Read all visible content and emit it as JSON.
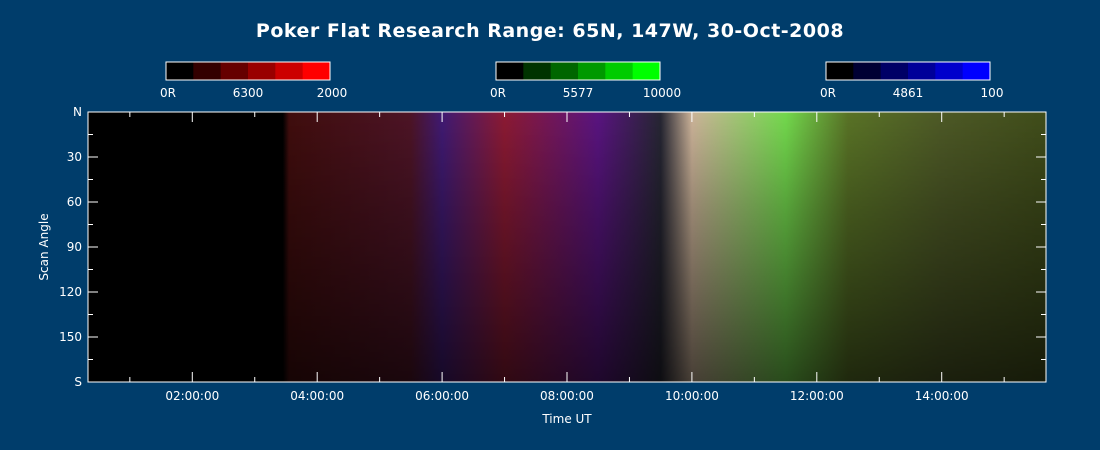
{
  "chart_data": {
    "type": "heatmap",
    "title": "Poker Flat Research Range: 65N, 147W, 30-Oct-2008",
    "xlabel": "Time UT",
    "ylabel": "Scan Angle",
    "x_tick_labels": [
      "02:00:00",
      "04:00:00",
      "06:00:00",
      "08:00:00",
      "10:00:00",
      "12:00:00",
      "14:00:00"
    ],
    "x_range_hours": [
      0.33,
      15.67
    ],
    "y_tick_labels": [
      "N",
      "30",
      "60",
      "90",
      "120",
      "150",
      "S"
    ],
    "y_range_degrees": [
      0,
      180
    ],
    "colorbars": [
      {
        "min_label": "0R",
        "center_label": "6300",
        "max_label": "2000",
        "color": "#ff0000",
        "swatches": [
          "#000000",
          "#330000",
          "#660000",
          "#990000",
          "#cc0000",
          "#ff0000"
        ]
      },
      {
        "min_label": "0R",
        "center_label": "5577",
        "max_label": "10000",
        "color": "#00ff00",
        "swatches": [
          "#000000",
          "#003300",
          "#006600",
          "#009900",
          "#00cc00",
          "#00ff00"
        ]
      },
      {
        "min_label": "0R",
        "center_label": "4861",
        "max_label": "100",
        "color": "#0000ff",
        "swatches": [
          "#000000",
          "#000033",
          "#000066",
          "#000099",
          "#0000cc",
          "#0000ff"
        ]
      }
    ],
    "intensity_profile": [
      {
        "time": 0.33,
        "red": 0,
        "green": 0,
        "blue": 0
      },
      {
        "time": 3.45,
        "red": 0,
        "green": 0,
        "blue": 0
      },
      {
        "time": 3.55,
        "red": 0.25,
        "green": 0.05,
        "blue": 0.05
      },
      {
        "time": 5.5,
        "red": 0.3,
        "green": 0.08,
        "blue": 0.15
      },
      {
        "time": 6.0,
        "red": 0.25,
        "green": 0.1,
        "blue": 0.45
      },
      {
        "time": 7.0,
        "red": 0.55,
        "green": 0.1,
        "blue": 0.2
      },
      {
        "time": 8.5,
        "red": 0.35,
        "green": 0.08,
        "blue": 0.5
      },
      {
        "time": 9.5,
        "red": 0.15,
        "green": 0.15,
        "blue": 0.2
      },
      {
        "time": 10.0,
        "red": 0.8,
        "green": 0.7,
        "blue": 0.6
      },
      {
        "time": 11.5,
        "red": 0.45,
        "green": 0.85,
        "blue": 0.3
      },
      {
        "time": 12.5,
        "red": 0.35,
        "green": 0.45,
        "blue": 0.15
      },
      {
        "time": 14.0,
        "red": 0.3,
        "green": 0.35,
        "blue": 0.15
      },
      {
        "time": 15.67,
        "red": 0.25,
        "green": 0.3,
        "blue": 0.1
      }
    ]
  },
  "colors": {
    "background": "#003d6b",
    "axis": "#ffffff",
    "plot_empty": "#000000"
  }
}
